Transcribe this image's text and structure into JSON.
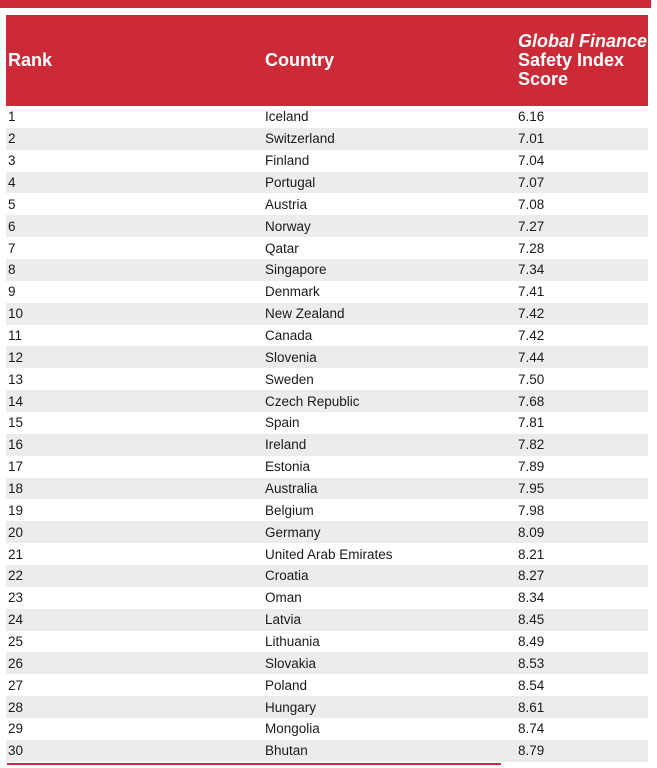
{
  "theme": {
    "accent_color": "#cd2a37",
    "alt_row_color": "#ececec",
    "text_color": "#1a1a1a",
    "header_text_color": "#ffffff"
  },
  "table": {
    "columns": {
      "rank": "Rank",
      "country": "Country",
      "score_line1": "Global Finance",
      "score_line2": "Safety Index",
      "score_line3": "Score"
    }
  },
  "chart_data": {
    "type": "table",
    "title": "Global Finance Safety Index Score",
    "columns": [
      "Rank",
      "Country",
      "Global Finance Safety Index Score"
    ],
    "rows": [
      {
        "rank": "1",
        "country": "Iceland",
        "score": "6.16"
      },
      {
        "rank": "2",
        "country": "Switzerland",
        "score": "7.01"
      },
      {
        "rank": "3",
        "country": "Finland",
        "score": "7.04"
      },
      {
        "rank": "4",
        "country": "Portugal",
        "score": "7.07"
      },
      {
        "rank": "5",
        "country": "Austria",
        "score": "7.08"
      },
      {
        "rank": "6",
        "country": "Norway",
        "score": "7.27"
      },
      {
        "rank": "7",
        "country": "Qatar",
        "score": "7.28"
      },
      {
        "rank": "8",
        "country": "Singapore",
        "score": "7.34"
      },
      {
        "rank": "9",
        "country": "Denmark",
        "score": "7.41"
      },
      {
        "rank": "10",
        "country": "New Zealand",
        "score": "7.42"
      },
      {
        "rank": "11",
        "country": "Canada",
        "score": "7.42"
      },
      {
        "rank": "12",
        "country": "Slovenia",
        "score": "7.44"
      },
      {
        "rank": "13",
        "country": "Sweden",
        "score": "7.50"
      },
      {
        "rank": "14",
        "country": "Czech Republic",
        "score": "7.68"
      },
      {
        "rank": "15",
        "country": "Spain",
        "score": "7.81"
      },
      {
        "rank": "16",
        "country": "Ireland",
        "score": "7.82"
      },
      {
        "rank": "17",
        "country": "Estonia",
        "score": "7.89"
      },
      {
        "rank": "18",
        "country": "Australia",
        "score": "7.95"
      },
      {
        "rank": "19",
        "country": "Belgium",
        "score": "7.98"
      },
      {
        "rank": "20",
        "country": "Germany",
        "score": "8.09"
      },
      {
        "rank": "21",
        "country": "United Arab Emirates",
        "score": "8.21"
      },
      {
        "rank": "22",
        "country": "Croatia",
        "score": "8.27"
      },
      {
        "rank": "23",
        "country": "Oman",
        "score": "8.34"
      },
      {
        "rank": "24",
        "country": "Latvia",
        "score": "8.45"
      },
      {
        "rank": "25",
        "country": "Lithuania",
        "score": "8.49"
      },
      {
        "rank": "26",
        "country": "Slovakia",
        "score": "8.53"
      },
      {
        "rank": "27",
        "country": "Poland",
        "score": "8.54"
      },
      {
        "rank": "28",
        "country": "Hungary",
        "score": "8.61"
      },
      {
        "rank": "29",
        "country": "Mongolia",
        "score": "8.74"
      },
      {
        "rank": "30",
        "country": "Bhutan",
        "score": "8.79"
      }
    ]
  }
}
